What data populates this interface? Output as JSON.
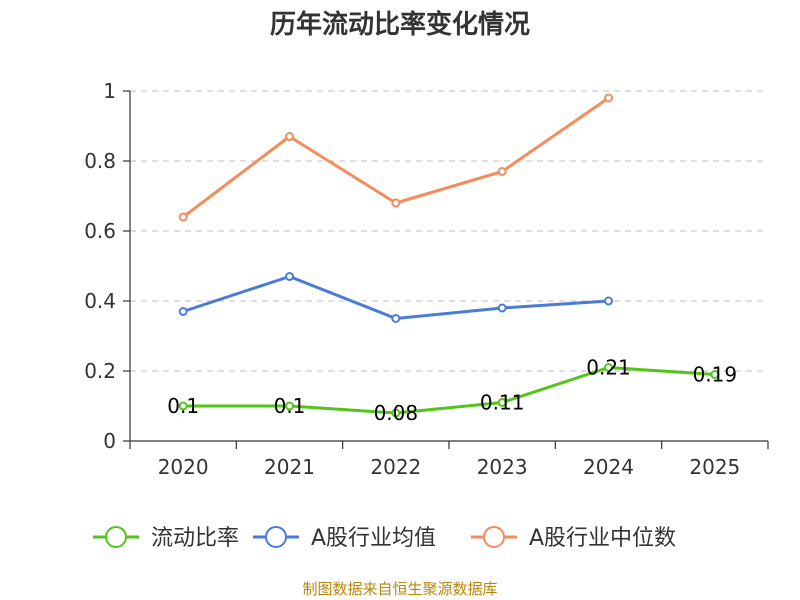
{
  "chart_data": {
    "type": "line",
    "title": "历年流动比率变化情况",
    "categories": [
      "2020",
      "2021",
      "2022",
      "2023",
      "2024",
      "2025"
    ],
    "ylim": [
      0,
      1
    ],
    "yticks": [
      "0",
      "0.2",
      "0.4",
      "0.6",
      "0.8",
      "1"
    ],
    "grid": true,
    "legend_position": "bottom",
    "series": [
      {
        "name": "流动比率",
        "color": "#52c41a",
        "values": [
          0.1,
          0.1,
          0.08,
          0.11,
          0.21,
          0.19
        ],
        "labels": [
          "0.1",
          "0.1",
          "0.08",
          "0.11",
          "0.21",
          "0.19"
        ]
      },
      {
        "name": "A股行业均值",
        "color": "#4a7bd8",
        "values": [
          0.37,
          0.47,
          0.35,
          0.38,
          0.4,
          null
        ]
      },
      {
        "name": "A股行业中位数",
        "color": "#f58c5a",
        "values": [
          0.64,
          0.87,
          0.68,
          0.77,
          0.98,
          null
        ]
      }
    ]
  },
  "source_text": "制图数据来自恒生聚源数据库"
}
